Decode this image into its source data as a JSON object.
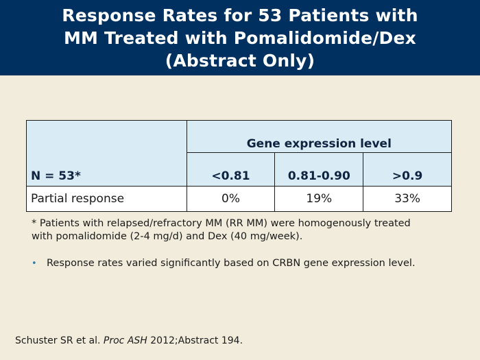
{
  "slide": {
    "title_lines": [
      "Response Rates for 53 Patients with",
      "MM Treated with Pomalidomide/Dex",
      "(Abstract Only)"
    ]
  },
  "table": {
    "group_header": "Gene expression level",
    "n_label": "N = 53*",
    "columns": [
      "<0.81",
      "0.81-0.90",
      ">0.9"
    ],
    "rows": [
      {
        "label": "Partial response",
        "values": [
          "0%",
          "19%",
          "33%"
        ]
      }
    ]
  },
  "footnote": {
    "line1": "* Patients with relapsed/refractory MM (RR MM) were homogenously treated",
    "line2": "with pomalidomide (2-4 mg/d) and Dex (40 mg/week)."
  },
  "bullets": [
    "Response rates varied significantly based on CRBN gene expression level."
  ],
  "citation": {
    "authors": "Schuster SR et al. ",
    "journal": "Proc ASH",
    "rest": " 2012;Abstract 194."
  }
}
